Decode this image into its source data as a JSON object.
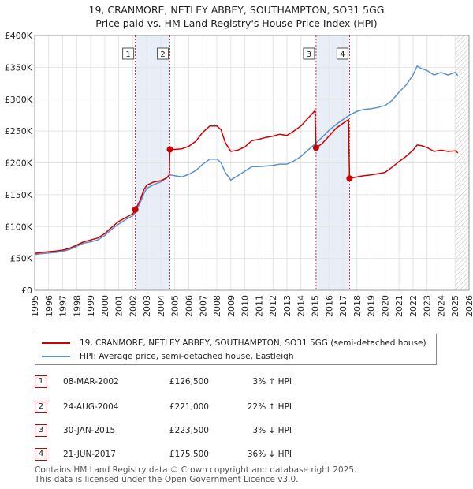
{
  "title": {
    "line1": "19, CRANMORE, NETLEY ABBEY, SOUTHAMPTON, SO31 5GG",
    "line2": "Price paid vs. HM Land Registry's House Price Index (HPI)"
  },
  "legend": {
    "property": "19, CRANMORE, NETLEY ABBEY, SOUTHAMPTON, SO31 5GG (semi-detached house)",
    "hpi": "HPI: Average price, semi-detached house, Eastleigh"
  },
  "sales": [
    {
      "num": "1",
      "date": "08-MAR-2002",
      "price": "£126,500",
      "hpi": "3% ↑ HPI"
    },
    {
      "num": "2",
      "date": "24-AUG-2004",
      "price": "£221,000",
      "hpi": "22% ↑ HPI"
    },
    {
      "num": "3",
      "date": "30-JAN-2015",
      "price": "£223,500",
      "hpi": "3% ↓ HPI"
    },
    {
      "num": "4",
      "date": "21-JUN-2017",
      "price": "£175,500",
      "hpi": "36% ↓ HPI"
    }
  ],
  "footer": {
    "line1": "Contains HM Land Registry data © Crown copyright and database right 2025.",
    "line2": "This data is licensed under the Open Government Licence v3.0."
  },
  "colors": {
    "property": "#cc0000",
    "hpi": "#5b8fcf",
    "shade": "#e8eef8",
    "grid": "#e4e4e4"
  },
  "chart_data": {
    "type": "line",
    "x_range": [
      1995,
      2026
    ],
    "ylim": [
      0,
      400000
    ],
    "yticks": [
      0,
      50000,
      100000,
      150000,
      200000,
      250000,
      300000,
      350000,
      400000
    ],
    "ytick_labels": [
      "£0",
      "£50K",
      "£100K",
      "£150K",
      "£200K",
      "£250K",
      "£300K",
      "£350K",
      "£400K"
    ],
    "xtick_labels": [
      "1995",
      "1996",
      "1997",
      "1998",
      "1999",
      "2000",
      "2001",
      "2002",
      "2003",
      "2004",
      "2005",
      "2006",
      "2007",
      "2008",
      "2009",
      "2010",
      "2011",
      "2012",
      "2013",
      "2014",
      "2015",
      "2016",
      "2017",
      "2018",
      "2019",
      "2020",
      "2021",
      "2022",
      "2023",
      "2024",
      "2025",
      "2026"
    ],
    "grid": true,
    "hatched_from": 2025.0,
    "shaded_periods": [
      [
        2002.18,
        2004.65
      ],
      [
        2015.08,
        2017.47
      ]
    ],
    "series": [
      {
        "name": "19, CRANMORE, NETLEY ABBEY, SOUTHAMPTON, SO31 5GG (semi-detached house)",
        "points": [
          [
            1995.0,
            58000
          ],
          [
            1995.5,
            59500
          ],
          [
            1996.0,
            60500
          ],
          [
            1996.5,
            61500
          ],
          [
            1997.0,
            63000
          ],
          [
            1997.5,
            66000
          ],
          [
            1998.0,
            71000
          ],
          [
            1998.5,
            76000
          ],
          [
            1999.0,
            79000
          ],
          [
            1999.5,
            82000
          ],
          [
            2000.0,
            89000
          ],
          [
            2000.5,
            99000
          ],
          [
            2001.0,
            108000
          ],
          [
            2001.5,
            114000
          ],
          [
            2002.0,
            120000
          ],
          [
            2002.18,
            126500
          ],
          [
            2002.5,
            140000
          ],
          [
            2002.8,
            158000
          ],
          [
            2003.0,
            165000
          ],
          [
            2003.5,
            170000
          ],
          [
            2004.0,
            172000
          ],
          [
            2004.4,
            176000
          ],
          [
            2004.6,
            181000
          ],
          [
            2004.65,
            221000
          ],
          [
            2005.0,
            221000
          ],
          [
            2005.5,
            222000
          ],
          [
            2006.0,
            226000
          ],
          [
            2006.5,
            234000
          ],
          [
            2007.0,
            248000
          ],
          [
            2007.5,
            258000
          ],
          [
            2008.0,
            258000
          ],
          [
            2008.3,
            252000
          ],
          [
            2008.6,
            232000
          ],
          [
            2009.0,
            218000
          ],
          [
            2009.5,
            220000
          ],
          [
            2010.0,
            225000
          ],
          [
            2010.5,
            235000
          ],
          [
            2011.0,
            237000
          ],
          [
            2011.5,
            240000
          ],
          [
            2012.0,
            242000
          ],
          [
            2012.5,
            245000
          ],
          [
            2013.0,
            243000
          ],
          [
            2013.5,
            250000
          ],
          [
            2014.0,
            258000
          ],
          [
            2014.5,
            270000
          ],
          [
            2015.0,
            282000
          ],
          [
            2015.08,
            223500
          ],
          [
            2015.5,
            230000
          ],
          [
            2016.0,
            242000
          ],
          [
            2016.5,
            254000
          ],
          [
            2017.0,
            262000
          ],
          [
            2017.4,
            268000
          ],
          [
            2017.47,
            175500
          ],
          [
            2018.0,
            178000
          ],
          [
            2018.5,
            180000
          ],
          [
            2019.0,
            181000
          ],
          [
            2019.5,
            183000
          ],
          [
            2020.0,
            185000
          ],
          [
            2020.5,
            193000
          ],
          [
            2021.0,
            202000
          ],
          [
            2021.5,
            210000
          ],
          [
            2022.0,
            220000
          ],
          [
            2022.3,
            228000
          ],
          [
            2022.6,
            227000
          ],
          [
            2023.0,
            224000
          ],
          [
            2023.5,
            218000
          ],
          [
            2024.0,
            220000
          ],
          [
            2024.5,
            218000
          ],
          [
            2025.0,
            219000
          ],
          [
            2025.2,
            216000
          ]
        ]
      },
      {
        "name": "HPI: Average price, semi-detached house, Eastleigh",
        "points": [
          [
            1995.0,
            56000
          ],
          [
            1995.5,
            57500
          ],
          [
            1996.0,
            58500
          ],
          [
            1996.5,
            59500
          ],
          [
            1997.0,
            61000
          ],
          [
            1997.5,
            64000
          ],
          [
            1998.0,
            69000
          ],
          [
            1998.5,
            74000
          ],
          [
            1999.0,
            76000
          ],
          [
            1999.5,
            79000
          ],
          [
            2000.0,
            86000
          ],
          [
            2000.5,
            96000
          ],
          [
            2001.0,
            104000
          ],
          [
            2001.5,
            111000
          ],
          [
            2002.0,
            117000
          ],
          [
            2002.18,
            122500
          ],
          [
            2002.5,
            136000
          ],
          [
            2002.8,
            152000
          ],
          [
            2003.0,
            160000
          ],
          [
            2003.5,
            166000
          ],
          [
            2004.0,
            170000
          ],
          [
            2004.65,
            181000
          ],
          [
            2005.0,
            180000
          ],
          [
            2005.5,
            178000
          ],
          [
            2006.0,
            182000
          ],
          [
            2006.5,
            188000
          ],
          [
            2007.0,
            198000
          ],
          [
            2007.5,
            206000
          ],
          [
            2008.0,
            206000
          ],
          [
            2008.3,
            200000
          ],
          [
            2008.6,
            185000
          ],
          [
            2009.0,
            173000
          ],
          [
            2009.5,
            180000
          ],
          [
            2010.0,
            187000
          ],
          [
            2010.5,
            194000
          ],
          [
            2011.0,
            194000
          ],
          [
            2011.5,
            195000
          ],
          [
            2012.0,
            196000
          ],
          [
            2012.5,
            198000
          ],
          [
            2013.0,
            198000
          ],
          [
            2013.5,
            203000
          ],
          [
            2014.0,
            210000
          ],
          [
            2014.5,
            220000
          ],
          [
            2015.08,
            231000
          ],
          [
            2015.5,
            240000
          ],
          [
            2016.0,
            251000
          ],
          [
            2016.5,
            260000
          ],
          [
            2017.0,
            268000
          ],
          [
            2017.47,
            275000
          ],
          [
            2018.0,
            281000
          ],
          [
            2018.5,
            284000
          ],
          [
            2019.0,
            285000
          ],
          [
            2019.5,
            287000
          ],
          [
            2020.0,
            290000
          ],
          [
            2020.5,
            298000
          ],
          [
            2021.0,
            311000
          ],
          [
            2021.5,
            322000
          ],
          [
            2022.0,
            338000
          ],
          [
            2022.3,
            352000
          ],
          [
            2022.6,
            348000
          ],
          [
            2023.0,
            345000
          ],
          [
            2023.5,
            338000
          ],
          [
            2024.0,
            342000
          ],
          [
            2024.5,
            338000
          ],
          [
            2025.0,
            342000
          ],
          [
            2025.2,
            337000
          ]
        ]
      }
    ],
    "sale_markers": [
      {
        "label": "1",
        "x": 2002.18,
        "y": 126500
      },
      {
        "label": "2",
        "x": 2004.65,
        "y": 221000
      },
      {
        "label": "3",
        "x": 2015.08,
        "y": 223500
      },
      {
        "label": "4",
        "x": 2017.47,
        "y": 175500
      }
    ]
  }
}
